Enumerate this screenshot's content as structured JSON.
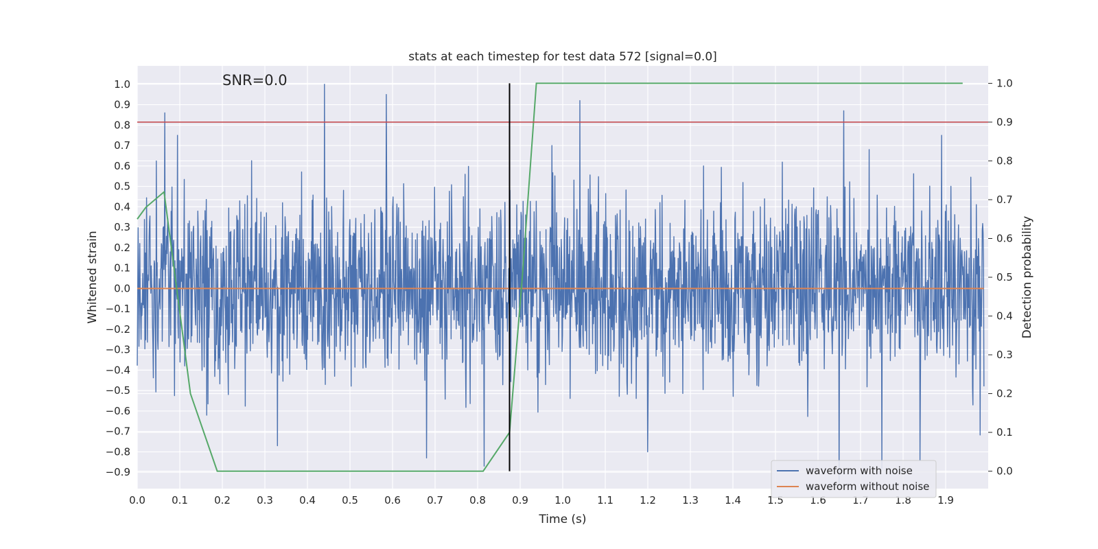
{
  "chart_data": {
    "type": "line",
    "title": "stats at each timestep for test data 572 [signal=0.0]",
    "xlabel": "Time (s)",
    "ylabel_left": "Whitened strain",
    "ylabel_right": "Detection probability",
    "annotation": "SNR=0.0",
    "xlim": [
      0.0,
      2.0
    ],
    "ylim_left": [
      -0.98,
      1.09
    ],
    "ylim_right": [
      -0.045,
      1.045
    ],
    "xticks": [
      "0.0",
      "0.1",
      "0.2",
      "0.3",
      "0.4",
      "0.5",
      "0.6",
      "0.7",
      "0.8",
      "0.9",
      "1.0",
      "1.1",
      "1.2",
      "1.3",
      "1.4",
      "1.5",
      "1.6",
      "1.7",
      "1.8",
      "1.9"
    ],
    "yticks_left": [
      "1.0",
      "0.9",
      "0.8",
      "0.7",
      "0.6",
      "0.5",
      "0.4",
      "0.3",
      "0.2",
      "0.1",
      "0.0",
      "−0.1",
      "−0.2",
      "−0.3",
      "−0.4",
      "−0.5",
      "−0.6",
      "−0.7",
      "−0.8",
      "−0.9"
    ],
    "yticks_right": [
      "1.0",
      "0.9",
      "0.8",
      "0.7",
      "0.6",
      "0.5",
      "0.4",
      "0.3",
      "0.2",
      "0.1",
      "0.0"
    ],
    "grid": true,
    "legend_position": "bottom-right",
    "colors": {
      "noise": "#4c72b0",
      "clean": "#dd8452",
      "probability": "#55a868",
      "threshold": "#c44e52",
      "marker": "#000000",
      "background": "#eaeaf2"
    },
    "series": [
      {
        "name": "waveform with noise",
        "kind": "noise",
        "count": 2000,
        "amplitude_sd": 0.22,
        "peaks": [
          [
            0.065,
            0.86
          ],
          [
            0.44,
            1.0
          ],
          [
            0.585,
            0.95
          ],
          [
            1.04,
            0.92
          ],
          [
            1.66,
            0.87
          ],
          [
            1.89,
            0.75
          ],
          [
            0.33,
            -0.77
          ],
          [
            0.68,
            -0.83
          ],
          [
            0.815,
            -0.87
          ],
          [
            1.2,
            -0.8
          ],
          [
            1.65,
            -0.95
          ],
          [
            1.75,
            -0.88
          ],
          [
            1.84,
            -0.84
          ],
          [
            0.095,
            0.75
          ],
          [
            0.975,
            0.7
          ],
          [
            1.72,
            0.68
          ]
        ]
      },
      {
        "name": "waveform without noise",
        "kind": "flat",
        "y": 0.0
      },
      {
        "name": "detection probability",
        "kind": "probability",
        "x": [
          0.0,
          0.02,
          0.063,
          0.125,
          0.188,
          0.25,
          0.313,
          0.375,
          0.438,
          0.5,
          0.563,
          0.625,
          0.688,
          0.75,
          0.813,
          0.875,
          0.905,
          0.938,
          1.0,
          1.25,
          1.5,
          1.75,
          1.94
        ],
        "y": [
          0.65,
          0.68,
          0.72,
          0.2,
          0.0,
          0.0,
          0.0,
          0.0,
          0.0,
          0.0,
          0.0,
          0.0,
          0.0,
          0.0,
          0.0,
          0.1,
          0.5,
          1.0,
          1.0,
          1.0,
          1.0,
          1.0,
          1.0
        ]
      }
    ],
    "threshold": 0.9,
    "marker_x": 0.875
  }
}
